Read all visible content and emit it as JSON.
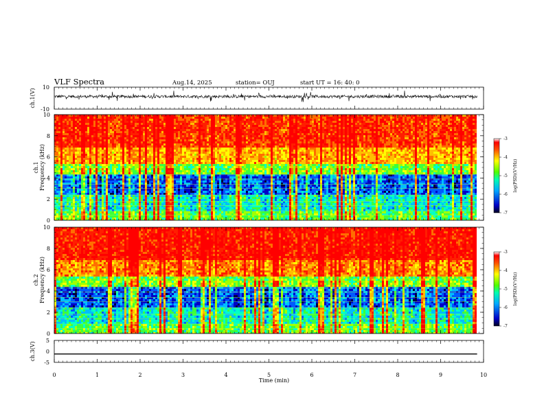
{
  "header": {
    "title": "VLF Spectra",
    "date": "Aug.14, 2025",
    "station": "station= OUJ",
    "start": "start  UT  =   16: 40: 0"
  },
  "chart_data": [
    {
      "type": "line",
      "name": "ch1-waveform",
      "ylabel": "ch.1(V)",
      "ylim": [
        -10,
        10
      ],
      "yticks": [
        "10",
        "-10"
      ],
      "xlim": [
        0,
        10
      ],
      "description_values": {
        "baseline_V": 1.5,
        "noise_range_V": [
          -3,
          5
        ]
      }
    },
    {
      "type": "heatmap",
      "name": "ch1-spectrogram",
      "ylabel_line1": "ch.1",
      "ylabel_line2": "Frequency  (kHz)",
      "ylim": [
        0,
        10
      ],
      "yticks": [
        "0",
        "2",
        "4",
        "6",
        "8",
        "10"
      ],
      "xlim": [
        0,
        9.8
      ],
      "colorbar": {
        "label": "log(PSD)(V²/Hz)",
        "range": [
          -7,
          -3
        ],
        "ticks": [
          "-3",
          "-4",
          "-5",
          "-6",
          "-7"
        ]
      }
    },
    {
      "type": "heatmap",
      "name": "ch2-spectrogram",
      "ylabel_line1": "ch.2",
      "ylabel_line2": "Frequency  (kHz)",
      "ylim": [
        0,
        10
      ],
      "yticks": [
        "0",
        "2",
        "4",
        "6",
        "8",
        "10"
      ],
      "xlim": [
        0,
        9.8
      ],
      "colorbar": {
        "label": "log(PSD)(V²/Hz)",
        "range": [
          -7,
          -3
        ],
        "ticks": [
          "-3",
          "-4",
          "-5",
          "-6",
          "-7"
        ]
      }
    },
    {
      "type": "line",
      "name": "ch3-waveform",
      "ylabel": "ch.3(V)",
      "ylim": [
        -5,
        5
      ],
      "yticks": [
        "5",
        "0",
        "-5"
      ],
      "xlim": [
        0,
        10
      ],
      "x": [
        0,
        9.85
      ],
      "y": [
        -1.2,
        -1.2
      ]
    }
  ],
  "xaxis": {
    "label": "Time  (min)",
    "ticks": [
      "0",
      "1",
      "2",
      "3",
      "4",
      "5",
      "6",
      "7",
      "8",
      "9",
      "10"
    ],
    "range": [
      0,
      10
    ]
  },
  "colors": {
    "axis": "#000000",
    "background": "#ffffff"
  }
}
